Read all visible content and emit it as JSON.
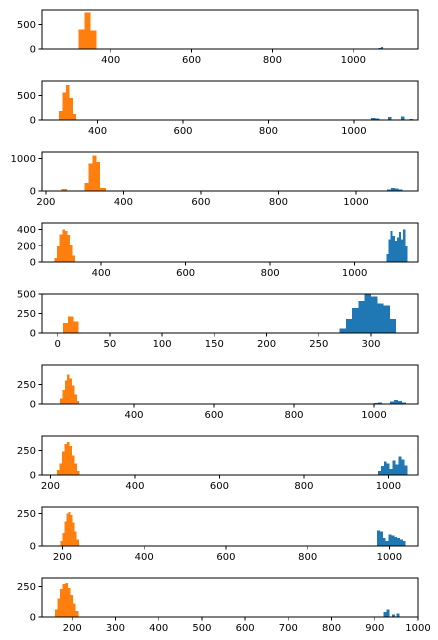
{
  "colors": {
    "blue": "#1f77b4",
    "orange": "#ff7f0e",
    "frame": "#000000",
    "background": "#ffffff"
  },
  "chart_data": [
    {
      "type": "histogram",
      "xlim": [
        230,
        1160
      ],
      "ylim": [
        0,
        800
      ],
      "xticks": [
        400,
        600,
        800,
        1000
      ],
      "yticks": [
        0,
        500
      ],
      "series": [
        {
          "color": "orange",
          "bins": [
            [
              320,
              335,
              400
            ],
            [
              335,
              350,
              750
            ],
            [
              350,
              365,
              380
            ]
          ]
        },
        {
          "color": "blue",
          "bins": [
            [
              1062,
              1068,
              20
            ],
            [
              1068,
              1074,
              45
            ],
            [
              1074,
              1080,
              15
            ]
          ]
        }
      ]
    },
    {
      "type": "histogram",
      "xlim": [
        270,
        1150
      ],
      "ylim": [
        0,
        800
      ],
      "xticks": [
        400,
        600,
        800,
        1000
      ],
      "yticks": [
        0,
        500
      ],
      "series": [
        {
          "color": "orange",
          "bins": [
            [
              310,
              318,
              180
            ],
            [
              318,
              326,
              560
            ],
            [
              326,
              334,
              720
            ],
            [
              334,
              342,
              450
            ],
            [
              342,
              350,
              120
            ]
          ]
        },
        {
          "color": "blue",
          "bins": [
            [
              1040,
              1050,
              40
            ],
            [
              1050,
              1060,
              30
            ],
            [
              1080,
              1088,
              60
            ],
            [
              1110,
              1118,
              70
            ],
            [
              1130,
              1138,
              20
            ]
          ]
        }
      ]
    },
    {
      "type": "histogram",
      "xlim": [
        190,
        1160
      ],
      "ylim": [
        0,
        1200
      ],
      "xticks": [
        200,
        400,
        600,
        800,
        1000
      ],
      "yticks": [
        0,
        1000
      ],
      "series": [
        {
          "color": "orange",
          "bins": [
            [
              240,
              255,
              60
            ],
            [
              300,
              310,
              250
            ],
            [
              310,
              320,
              850
            ],
            [
              320,
              330,
              1100
            ],
            [
              330,
              340,
              900
            ],
            [
              340,
              355,
              100
            ]
          ]
        },
        {
          "color": "blue",
          "bins": [
            [
              1080,
              1090,
              50
            ],
            [
              1090,
              1100,
              90
            ],
            [
              1100,
              1110,
              70
            ],
            [
              1110,
              1120,
              40
            ]
          ]
        }
      ]
    },
    {
      "type": "histogram",
      "xlim": [
        260,
        1150
      ],
      "ylim": [
        0,
        480
      ],
      "xticks": [
        400,
        600,
        800,
        1000
      ],
      "yticks": [
        0,
        200,
        400
      ],
      "series": [
        {
          "color": "orange",
          "bins": [
            [
              290,
              296,
              50
            ],
            [
              296,
              302,
              200
            ],
            [
              302,
              308,
              340
            ],
            [
              308,
              314,
              400
            ],
            [
              314,
              320,
              380
            ],
            [
              320,
              326,
              330
            ],
            [
              326,
              332,
              210
            ],
            [
              332,
              338,
              80
            ]
          ]
        },
        {
          "color": "blue",
          "bins": [
            [
              1075,
              1080,
              100
            ],
            [
              1080,
              1085,
              280
            ],
            [
              1085,
              1090,
              380
            ],
            [
              1090,
              1095,
              320
            ],
            [
              1095,
              1100,
              260
            ],
            [
              1100,
              1105,
              300
            ],
            [
              1105,
              1110,
              370
            ],
            [
              1110,
              1115,
              280
            ],
            [
              1115,
              1120,
              400
            ],
            [
              1120,
              1125,
              200
            ]
          ]
        }
      ]
    },
    {
      "type": "histogram",
      "xlim": [
        -15,
        345
      ],
      "ylim": [
        0,
        500
      ],
      "xticks": [
        0,
        50,
        100,
        150,
        200,
        250,
        300
      ],
      "yticks": [
        0,
        250,
        500
      ],
      "series": [
        {
          "color": "orange",
          "bins": [
            [
              5,
              10,
              130
            ],
            [
              10,
              15,
              210
            ],
            [
              15,
              20,
              150
            ]
          ]
        },
        {
          "color": "blue",
          "bins": [
            [
              270,
              276,
              60
            ],
            [
              276,
              282,
              180
            ],
            [
              282,
              288,
              320
            ],
            [
              288,
              294,
              410
            ],
            [
              294,
              300,
              510
            ],
            [
              300,
              306,
              470
            ],
            [
              306,
              312,
              380
            ],
            [
              312,
              318,
              350
            ],
            [
              318,
              324,
              180
            ]
          ]
        }
      ]
    },
    {
      "type": "histogram",
      "xlim": [
        170,
        1110
      ],
      "ylim": [
        0,
        500
      ],
      "xticks": [
        400,
        600,
        800,
        1000
      ],
      "yticks": [
        0,
        250
      ],
      "series": [
        {
          "color": "orange",
          "bins": [
            [
              215,
              221,
              70
            ],
            [
              221,
              227,
              180
            ],
            [
              227,
              233,
              300
            ],
            [
              233,
              239,
              380
            ],
            [
              239,
              245,
              330
            ],
            [
              245,
              251,
              240
            ],
            [
              251,
              257,
              120
            ],
            [
              257,
              263,
              40
            ]
          ]
        },
        {
          "color": "blue",
          "bins": [
            [
              1000,
              1010,
              15
            ],
            [
              1010,
              1020,
              20
            ],
            [
              1040,
              1050,
              30
            ],
            [
              1050,
              1060,
              50
            ],
            [
              1060,
              1070,
              40
            ],
            [
              1070,
              1080,
              20
            ]
          ]
        }
      ]
    },
    {
      "type": "histogram",
      "xlim": [
        180,
        1070
      ],
      "ylim": [
        0,
        400
      ],
      "xticks": [
        200,
        400,
        600,
        800,
        1000
      ],
      "yticks": [
        0,
        250
      ],
      "series": [
        {
          "color": "orange",
          "bins": [
            [
              215,
              221,
              50
            ],
            [
              221,
              227,
              120
            ],
            [
              227,
              233,
              240
            ],
            [
              233,
              239,
              320
            ],
            [
              239,
              245,
              340
            ],
            [
              245,
              251,
              300
            ],
            [
              251,
              257,
              200
            ],
            [
              257,
              263,
              120
            ],
            [
              263,
              269,
              40
            ]
          ]
        },
        {
          "color": "blue",
          "bins": [
            [
              975,
              982,
              40
            ],
            [
              982,
              989,
              90
            ],
            [
              989,
              996,
              140
            ],
            [
              996,
              1003,
              120
            ],
            [
              1003,
              1010,
              60
            ],
            [
              1010,
              1017,
              150
            ],
            [
              1017,
              1024,
              110
            ],
            [
              1024,
              1031,
              190
            ],
            [
              1031,
              1038,
              160
            ],
            [
              1038,
              1045,
              100
            ]
          ]
        }
      ]
    },
    {
      "type": "histogram",
      "xlim": [
        150,
        1070
      ],
      "ylim": [
        0,
        300
      ],
      "xticks": [
        200,
        400,
        600,
        800,
        1000
      ],
      "yticks": [
        0,
        250
      ],
      "series": [
        {
          "color": "orange",
          "bins": [
            [
              195,
              200,
              40
            ],
            [
              200,
              205,
              100
            ],
            [
              205,
              210,
              190
            ],
            [
              210,
              215,
              250
            ],
            [
              215,
              220,
              260
            ],
            [
              220,
              225,
              240
            ],
            [
              225,
              230,
              180
            ],
            [
              230,
              235,
              110
            ],
            [
              235,
              240,
              50
            ]
          ]
        },
        {
          "color": "blue",
          "bins": [
            [
              970,
              977,
              120
            ],
            [
              977,
              984,
              110
            ],
            [
              984,
              991,
              60
            ],
            [
              991,
              998,
              40
            ],
            [
              998,
              1005,
              90
            ],
            [
              1005,
              1012,
              80
            ],
            [
              1012,
              1019,
              70
            ],
            [
              1019,
              1026,
              60
            ],
            [
              1026,
              1033,
              50
            ],
            [
              1033,
              1040,
              40
            ]
          ]
        }
      ]
    },
    {
      "type": "histogram",
      "xlim": [
        130,
        1000
      ],
      "ylim": [
        0,
        320
      ],
      "xticks": [
        200,
        300,
        400,
        500,
        600,
        700,
        800,
        900,
        1000
      ],
      "yticks": [
        0,
        250
      ],
      "series": [
        {
          "color": "orange",
          "bins": [
            [
              160,
              166,
              60
            ],
            [
              166,
              172,
              150
            ],
            [
              172,
              178,
              230
            ],
            [
              178,
              184,
              270
            ],
            [
              184,
              190,
              280
            ],
            [
              190,
              196,
              240
            ],
            [
              196,
              202,
              180
            ],
            [
              202,
              208,
              110
            ],
            [
              208,
              214,
              50
            ]
          ]
        },
        {
          "color": "blue",
          "bins": [
            [
              920,
              927,
              40
            ],
            [
              927,
              934,
              60
            ],
            [
              940,
              947,
              20
            ],
            [
              950,
              957,
              30
            ]
          ]
        }
      ]
    }
  ]
}
